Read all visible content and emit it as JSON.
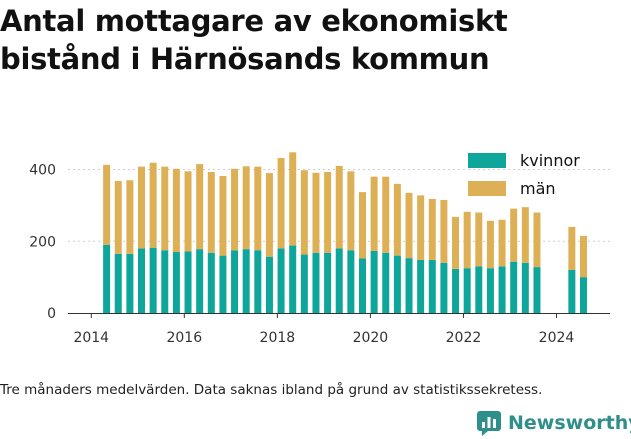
{
  "title": "Antal mottagare av ekonomiskt bistånd i Härnösands kommun",
  "caption": "Tre månaders medelvärden. Data saknas ibland på grund av statistikssekretess.",
  "logo": {
    "text": "Newsworthy",
    "icon": "newsworthy-bar-chart-icon"
  },
  "chart_data": {
    "type": "bar",
    "stacked": true,
    "x_ticks": [
      "2014",
      "2016",
      "2018",
      "2020",
      "2022",
      "2024"
    ],
    "y_ticks": [
      "0",
      "200",
      "400"
    ],
    "ylim": [
      0,
      460
    ],
    "xlim": [
      2013.5,
      2025.15
    ],
    "grid": "horizontal",
    "legend_position": "top-right",
    "colors": {
      "kvinnor": "#0ea69a",
      "män": "#ddb055"
    },
    "x": [
      2014.33,
      2014.58,
      2014.83,
      2015.08,
      2015.33,
      2015.58,
      2015.83,
      2016.08,
      2016.33,
      2016.58,
      2016.83,
      2017.08,
      2017.33,
      2017.58,
      2017.83,
      2018.08,
      2018.33,
      2018.58,
      2018.83,
      2019.08,
      2019.33,
      2019.58,
      2019.83,
      2020.08,
      2020.33,
      2020.58,
      2020.83,
      2021.08,
      2021.33,
      2021.58,
      2021.83,
      2022.08,
      2022.33,
      2022.58,
      2022.83,
      2023.08,
      2023.33,
      2023.58,
      2024.33,
      2024.58
    ],
    "series": [
      {
        "name": "kvinnor",
        "values": [
          190,
          165,
          165,
          180,
          182,
          175,
          170,
          172,
          178,
          168,
          160,
          175,
          178,
          175,
          157,
          180,
          188,
          163,
          168,
          168,
          180,
          175,
          152,
          173,
          168,
          160,
          153,
          148,
          148,
          140,
          123,
          125,
          130,
          125,
          130,
          143,
          140,
          128,
          120,
          100
        ]
      },
      {
        "name": "män",
        "values": [
          223,
          203,
          205,
          228,
          237,
          233,
          232,
          223,
          237,
          225,
          222,
          227,
          231,
          233,
          233,
          252,
          260,
          235,
          223,
          225,
          230,
          220,
          185,
          207,
          212,
          200,
          182,
          180,
          170,
          175,
          145,
          157,
          150,
          132,
          130,
          148,
          155,
          152,
          120,
          115
        ]
      }
    ]
  }
}
